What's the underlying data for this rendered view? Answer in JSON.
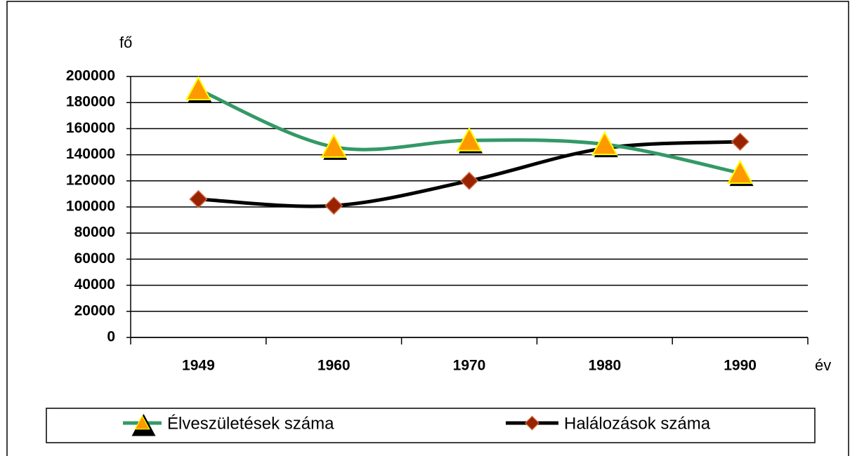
{
  "chart_data": {
    "type": "line",
    "ylabel": "fő",
    "xlabel": "év",
    "categories": [
      "1949",
      "1960",
      "1970",
      "1980",
      "1990"
    ],
    "series": [
      {
        "name": "Élveszületések száma",
        "color": "#339966",
        "marker": "triangle",
        "marker_color": "#ff9900",
        "values": [
          190000,
          146000,
          151000,
          148000,
          126000
        ]
      },
      {
        "name": "Halálozások száma",
        "color": "#000000",
        "marker": "diamond",
        "marker_color": "#992200",
        "values": [
          106000,
          101000,
          120000,
          145000,
          150000
        ]
      }
    ],
    "ylim": [
      0,
      200000
    ],
    "yticks": [
      0,
      20000,
      40000,
      60000,
      80000,
      100000,
      120000,
      140000,
      160000,
      180000,
      200000
    ],
    "grid": true,
    "smooth": true,
    "legend": "bottom"
  }
}
